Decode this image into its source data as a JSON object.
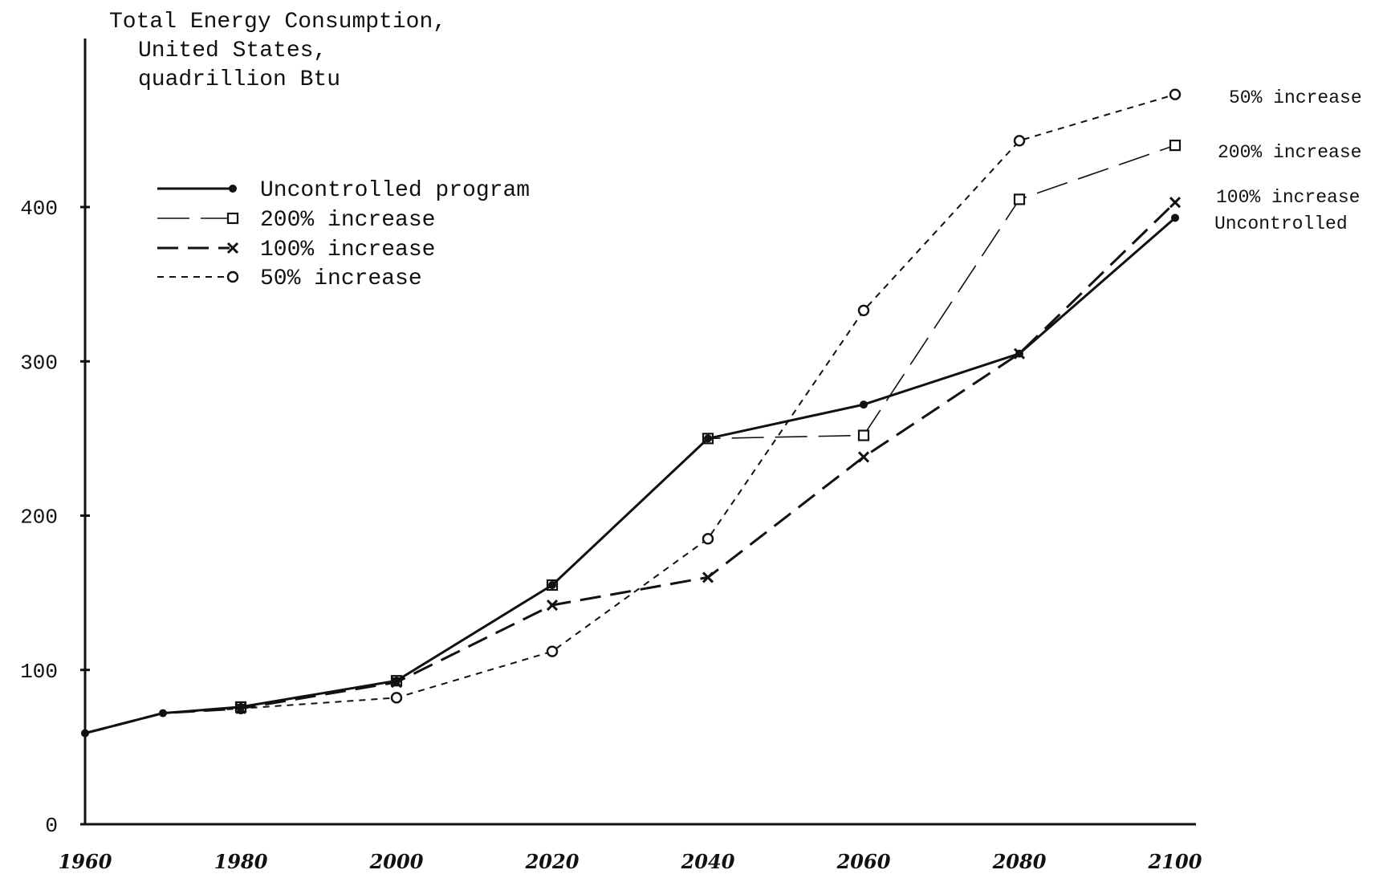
{
  "chart_data": {
    "type": "line",
    "title_lines": [
      "Total Energy Consumption,",
      "United States,",
      "quadrillion Btu"
    ],
    "xlim": [
      1960,
      2100
    ],
    "ylim": [
      0,
      400
    ],
    "x_ticks": [
      "1960",
      "1980",
      "2000",
      "2020",
      "2040",
      "2060",
      "2080",
      "2100"
    ],
    "y_ticks": [
      "0",
      "100",
      "200",
      "300",
      "400"
    ],
    "grid": false,
    "legend_position": "upper-left",
    "legend": [
      "Uncontrolled program",
      "200% increase",
      "100% increase",
      "50% increase"
    ],
    "series": [
      {
        "name": "Uncontrolled program",
        "end_label": "Uncontrolled",
        "marker": "dot",
        "points": [
          [
            1960,
            59
          ],
          [
            1970,
            72
          ],
          [
            1980,
            76
          ],
          [
            2000,
            93
          ],
          [
            2020,
            155
          ],
          [
            2040,
            250
          ],
          [
            2060,
            272
          ],
          [
            2080,
            305
          ],
          [
            2100,
            393
          ]
        ]
      },
      {
        "name": "200% increase",
        "end_label": "200% increase",
        "marker": "square",
        "points": [
          [
            1960,
            59
          ],
          [
            1970,
            72
          ],
          [
            1980,
            76
          ],
          [
            2000,
            93
          ],
          [
            2020,
            155
          ],
          [
            2040,
            250
          ],
          [
            2060,
            252
          ],
          [
            2080,
            405
          ],
          [
            2100,
            440
          ]
        ]
      },
      {
        "name": "100% increase",
        "end_label": "100% increase",
        "marker": "x",
        "points": [
          [
            1960,
            59
          ],
          [
            1970,
            72
          ],
          [
            1980,
            75
          ],
          [
            2000,
            92
          ],
          [
            2020,
            142
          ],
          [
            2040,
            160
          ],
          [
            2060,
            238
          ],
          [
            2080,
            305
          ],
          [
            2100,
            403
          ]
        ]
      },
      {
        "name": "50% increase",
        "end_label": "50% increase",
        "marker": "circle",
        "points": [
          [
            1960,
            59
          ],
          [
            1970,
            72
          ],
          [
            1980,
            75
          ],
          [
            2000,
            82
          ],
          [
            2020,
            112
          ],
          [
            2040,
            185
          ],
          [
            2060,
            333
          ],
          [
            2080,
            443
          ],
          [
            2100,
            473
          ]
        ]
      }
    ]
  }
}
